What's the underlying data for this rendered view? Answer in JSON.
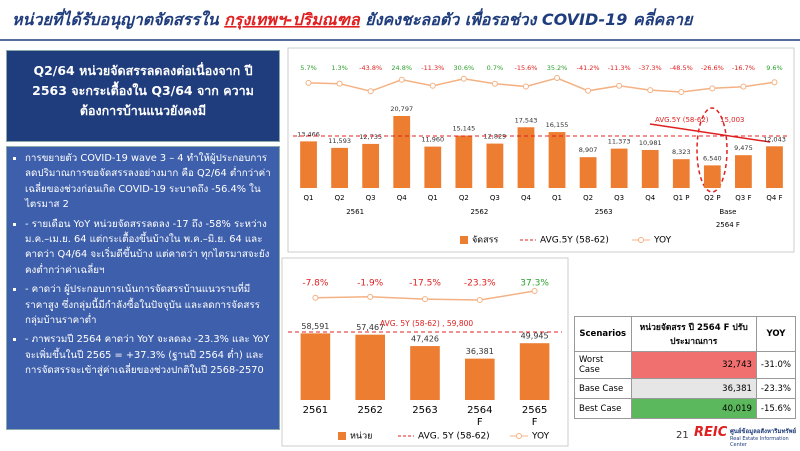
{
  "title": {
    "part1": "หน่วยที่ได้รับอนุญาตจัดสรรใน ",
    "highlight": "กรุงเทพฯ-ปริมณฑล",
    "part2": " ยังคงชะลอตัว เพื่อรอช่วง COVID-19 คลี่คลาย"
  },
  "left_panel": {
    "header": "Q2/64 หน่วยจัดสรรลดลงต่อเนื่องจาก ปี 2563 จะกระเตื้องใน Q3/64 จาก ความต้องการบ้านแนวยังคงมี",
    "bullets": [
      "การขยายตัว COVID-19 wave 3 – 4 ทำให้ผู้ประกอบการ ลดปริมาณการขอจัดสรรลงอย่างมาก คือ Q2/64 ต่ำกว่าค่าเฉลี่ยของช่วงก่อนเกิด COVID-19 ระบาดถึง -56.4% ในไตรมาส 2",
      "- รายเดือน YoY หน่วยจัดสรรลดลง -17 ถึง -58% ระหว่าง ม.ค.–เม.ย. 64 แต่กระเตื้องขึ้นบ้างใน พ.ค.–มิ.ย. 64 และคาดว่า Q4/64 จะเริ่มดีขึ้นบ้าง แต่คาดว่า ทุกไตรมาสจะยังคงต่ำกว่าค่าเฉลี่ยฯ",
      "- คาดว่า ผู้ประกอบการเน้นการจัดสรรบ้านแนวราบที่มีราคาสูง ซึ่งกลุ่มนี้มีกำลังซื้อในปัจจุบัน และลดการจัดสรรกลุ่มบ้านราคาต่ำ",
      "- ภาพรวมปี 2564 คาดว่า YoY จะลดลง -23.3% และ YoY จะเพิ่มขึ้นในปี 2565 = +37.3% (ฐานปี 2564 ต่ำ) และการจัดสรรจะเข้าสู่ค่าเฉลี่ยของช่วงปกติในปี 2568-2570"
    ]
  },
  "chart_data": [
    {
      "type": "bar",
      "groups": [
        {
          "label": "2561",
          "categories": [
            "Q1",
            "Q2",
            "Q3",
            "Q4"
          ]
        },
        {
          "label": "2562",
          "categories": [
            "Q1",
            "Q2",
            "Q3",
            "Q4"
          ]
        },
        {
          "label": "2563",
          "categories": [
            "Q1",
            "Q2",
            "Q3",
            "Q4"
          ]
        },
        {
          "label": "Base",
          "note": "2564 F",
          "categories": [
            "Q1 P",
            "Q2 P",
            "Q3 F",
            "Q4 F"
          ]
        }
      ],
      "series": [
        {
          "name": "จัดสรร",
          "color": "#ed7d31",
          "values": [
            13466,
            11593,
            12735,
            20797,
            11960,
            15145,
            12829,
            17543,
            16155,
            8907,
            11373,
            10981,
            8323,
            6540,
            9475,
            12043
          ],
          "value_labels": [
            "13,466",
            "11,593",
            "12,735",
            "20,797",
            "11,960",
            "15,145",
            "12,829",
            "17,543",
            "16,155",
            "8,907",
            "11,373",
            "10,981",
            "8,323",
            "6,540",
            "9,475",
            "12,043"
          ]
        },
        {
          "name": "YOY",
          "color": "#f4b183",
          "axis": "y2",
          "values": [
            5.7,
            1.3,
            -43.8,
            24.8,
            -11.3,
            30.6,
            0.7,
            -15.6,
            35.2,
            -41.2,
            -11.3,
            -37.3,
            -48.5,
            -26.6,
            -16.7,
            9.6
          ],
          "value_labels": [
            "5.7%",
            "1.3%",
            "-43.8%",
            "24.8%",
            "-11.3%",
            "30.6%",
            "0.7%",
            "-15.6%",
            "35.2%",
            "-41.2%",
            "-11.3%",
            "-37.3%",
            "-48.5%",
            "-26.6%",
            "-16.7%",
            "9.6%"
          ]
        }
      ],
      "avg_line": {
        "label": "AVG.5Y (58-62)",
        "value": 15003,
        "value_label": "15,003",
        "color": "#e02020"
      },
      "positive_color": "#2ca02c",
      "negative_color": "#e02020"
    },
    {
      "type": "bar",
      "categories": [
        "2561",
        "2562",
        "2563",
        "2564\nF",
        "2565\nF"
      ],
      "series": [
        {
          "name": "หน่วย",
          "color": "#ed7d31",
          "values": [
            58591,
            57467,
            47426,
            36381,
            49945
          ],
          "value_labels": [
            "58,591",
            "57,467",
            "47,426",
            "36,381",
            "49,945"
          ]
        },
        {
          "name": "YOY",
          "color": "#f4b183",
          "axis": "y2",
          "values": [
            -7.8,
            -1.9,
            -17.5,
            -23.3,
            37.3
          ],
          "value_labels": [
            "-7.8%",
            "-1.9%",
            "-17.5%",
            "-23.3%",
            "37.3%"
          ]
        }
      ],
      "avg_line": {
        "label": "AVG. 5Y (58-62)",
        "text": "AVG. 5Y (58-62) , 59,800",
        "value": 59800,
        "color": "#e02020"
      },
      "positive_color": "#2ca02c",
      "negative_color": "#e02020"
    }
  ],
  "table": {
    "headers": [
      "Scenarios",
      "หน่วยจัดสรร ปี 2564 F ปรับประมาณการ",
      "YOY"
    ],
    "rows": [
      {
        "scenario": "Worst Case",
        "units": "32,743",
        "yoy": "-31.0%",
        "color": "#f07070"
      },
      {
        "scenario": "Base Case",
        "units": "36,381",
        "yoy": "-23.3%",
        "color": "#e6e6e6"
      },
      {
        "scenario": "Best Case",
        "units": "40,019",
        "yoy": "-15.6%",
        "color": "#5cb85c"
      }
    ]
  },
  "footer": {
    "page": "21",
    "logo": "REIC",
    "org_th": "ศูนย์ข้อมูลอสังหาริมทรัพย์",
    "org_en": "Real Estate Information Center"
  }
}
